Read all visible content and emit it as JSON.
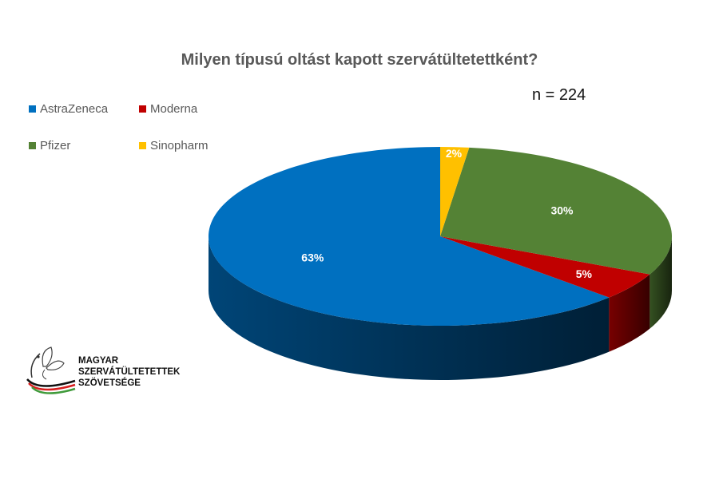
{
  "chart_data": {
    "type": "pie",
    "title": "Milyen típusú oltást kapott szervátültetettként?",
    "annotation": "n = 224",
    "categories": [
      "AstraZeneca",
      "Moderna",
      "Pfizer",
      "Sinopharm"
    ],
    "values": [
      63,
      5,
      30,
      2
    ],
    "data_labels": [
      "63%",
      "5%",
      "30%",
      "2%"
    ],
    "colors": [
      "#0070C0",
      "#C00000",
      "#548235",
      "#FFC000"
    ],
    "legend_position": "top-left",
    "style": "3d"
  },
  "legend": {
    "items": [
      {
        "label": "AstraZeneca",
        "color": "#0070C0"
      },
      {
        "label": "Moderna",
        "color": "#C00000"
      },
      {
        "label": "Pfizer",
        "color": "#548235"
      },
      {
        "label": "Sinopharm",
        "color": "#FFC000"
      }
    ]
  },
  "logo": {
    "line1": "MAGYAR",
    "line2": "SZERVÁTÜLTETETTEK",
    "line3": "SZÖVETSÉGE"
  }
}
